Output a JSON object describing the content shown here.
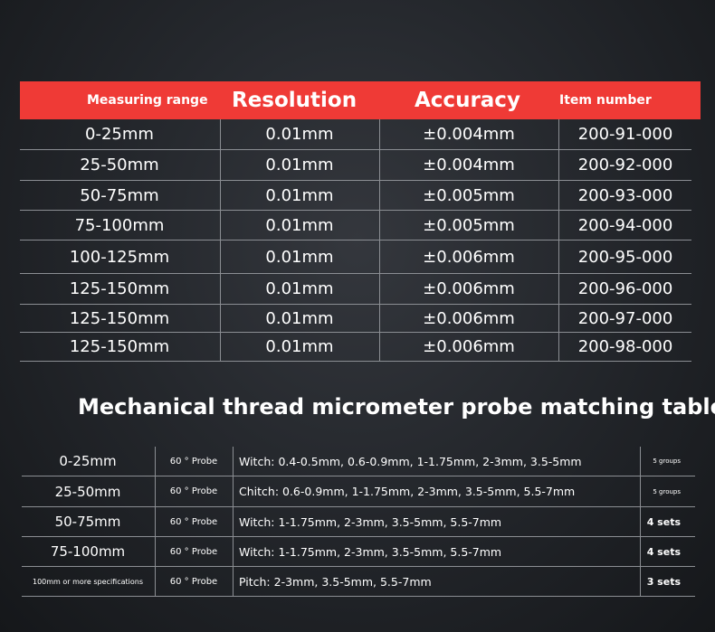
{
  "spec_table": {
    "headers": {
      "measuring_range": "Measuring range",
      "resolution": "Resolution",
      "accuracy": "Accuracy",
      "item_number": "Item number"
    },
    "rows": [
      {
        "range": "0-25mm",
        "resolution": "0.01mm",
        "accuracy": "±0.004mm",
        "item": "200-91-000"
      },
      {
        "range": "25-50mm",
        "resolution": "0.01mm",
        "accuracy": "±0.004mm",
        "item": "200-92-000"
      },
      {
        "range": "50-75mm",
        "resolution": "0.01mm",
        "accuracy": "±0.005mm",
        "item": "200-93-000"
      },
      {
        "range": "75-100mm",
        "resolution": "0.01mm",
        "accuracy": "±0.005mm",
        "item": "200-94-000"
      },
      {
        "range": "100-125mm",
        "resolution": "0.01mm",
        "accuracy": "±0.006mm",
        "item": "200-95-000"
      },
      {
        "range": "125-150mm",
        "resolution": "0.01mm",
        "accuracy": "±0.006mm",
        "item": "200-96-000"
      },
      {
        "range": "125-150mm",
        "resolution": "0.01mm",
        "accuracy": "±0.006mm",
        "item": "200-97-000"
      },
      {
        "range": "125-150mm",
        "resolution": "0.01mm",
        "accuracy": "±0.006mm",
        "item": "200-98-000"
      }
    ]
  },
  "section_title": "Mechanical thread micrometer probe matching table",
  "probe_table": {
    "rows": [
      {
        "range": "0-25mm",
        "probe": "60 ° Probe",
        "sizes": "Witch: 0.4-0.5mm, 0.6-0.9mm, 1-1.75mm, 2-3mm, 3.5-5mm",
        "sets": "5 groups"
      },
      {
        "range": "25-50mm",
        "probe": "60 ° Probe",
        "sizes": "Chitch: 0.6-0.9mm, 1-1.75mm, 2-3mm, 3.5-5mm, 5.5-7mm",
        "sets": "5 groups"
      },
      {
        "range": "50-75mm",
        "probe": "60 ° Probe",
        "sizes": "Witch: 1-1.75mm, 2-3mm, 3.5-5mm, 5.5-7mm",
        "sets": "4 sets"
      },
      {
        "range": "75-100mm",
        "probe": "60 ° Probe",
        "sizes": "Witch: 1-1.75mm, 2-3mm, 3.5-5mm, 5.5-7mm",
        "sets": "4 sets"
      },
      {
        "range": "100mm or more specifications",
        "probe": "60 ° Probe",
        "sizes": "Pitch: 2-3mm, 3.5-5mm, 5.5-7mm",
        "sets": "3 sets"
      }
    ]
  }
}
